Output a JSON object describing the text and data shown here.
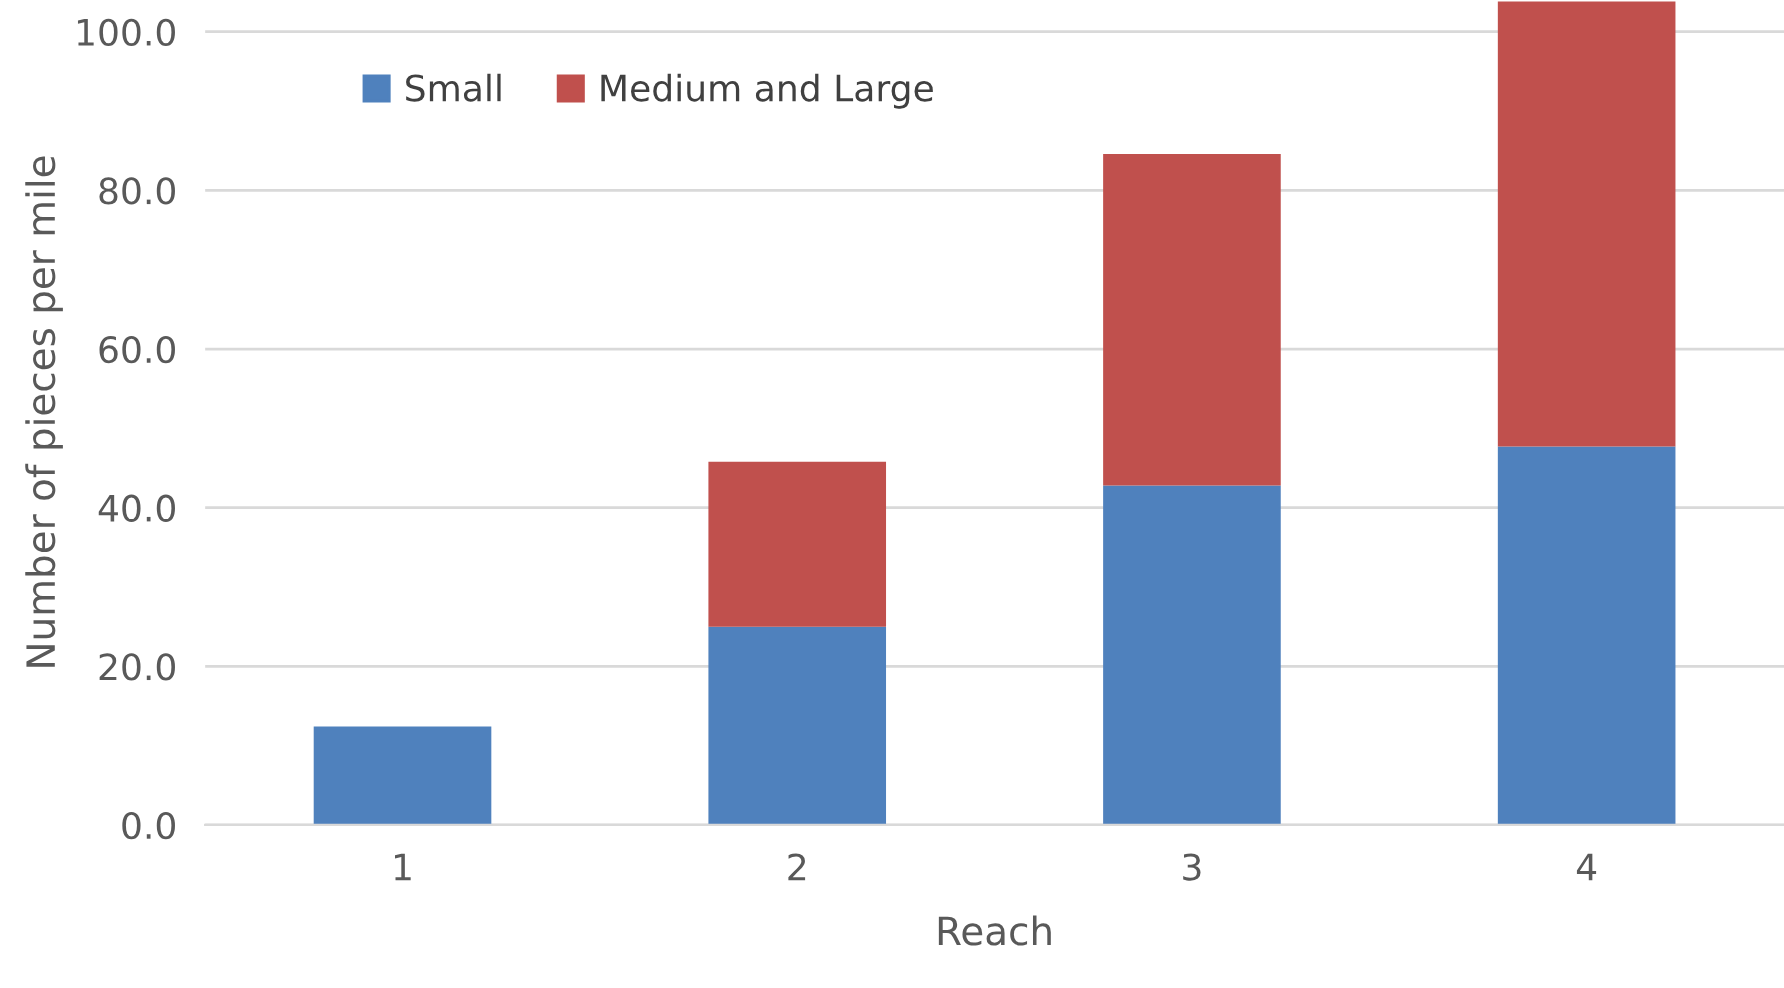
{
  "chart_data": {
    "type": "bar",
    "stacked": true,
    "xlabel": "Reach",
    "ylabel": "Number of pieces per mile",
    "categories": [
      "1",
      "2",
      "3",
      "4"
    ],
    "series": [
      {
        "name": "Small",
        "color": "#4f81bd",
        "values": [
          12.4,
          25.0,
          42.8,
          47.7
        ]
      },
      {
        "name": "Medium and Large",
        "color": "#c0504d",
        "values": [
          0,
          20.8,
          41.8,
          56.1
        ]
      }
    ],
    "ylim": [
      0,
      104
    ],
    "yticks": [
      {
        "value": 0,
        "label": "0.0"
      },
      {
        "value": 20,
        "label": "20.0"
      },
      {
        "value": 40,
        "label": "40.0"
      },
      {
        "value": 60,
        "label": "60.0"
      },
      {
        "value": 80,
        "label": "80.0"
      },
      {
        "value": 100,
        "label": "100.0"
      }
    ],
    "grid": "y",
    "legend": "top left"
  }
}
